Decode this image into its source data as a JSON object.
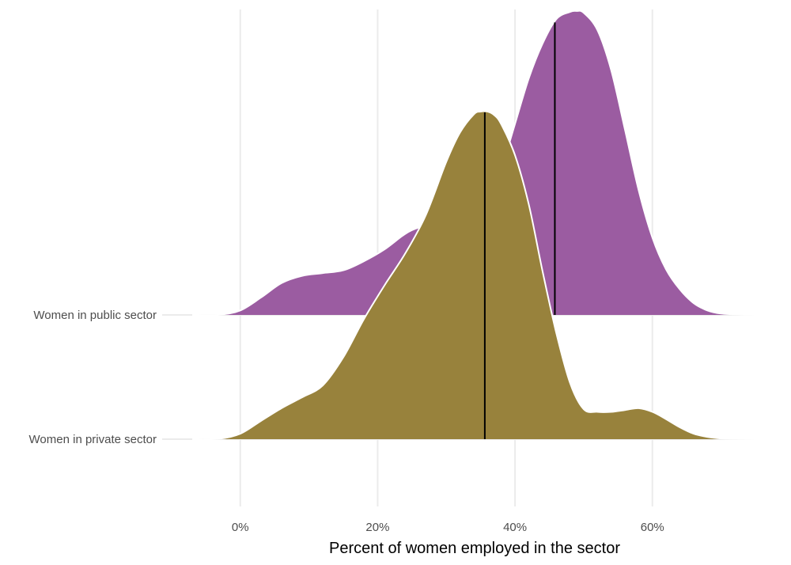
{
  "chart_data": {
    "type": "ridgeline",
    "title": "",
    "xlabel": "Percent of women employed in the sector",
    "ylabel": "",
    "xlim": [
      -7,
      75
    ],
    "x_ticks": [
      0,
      20,
      40,
      60
    ],
    "x_tick_labels": [
      "0%",
      "20%",
      "40%",
      "60%"
    ],
    "grid": true,
    "series": [
      {
        "name": "Women in public sector",
        "color": "#9b5ca1",
        "median": 45.8,
        "density_x": [
          -7,
          -3,
          0,
          3,
          6,
          9,
          12,
          15,
          18,
          21,
          24,
          26,
          27,
          28,
          30,
          32,
          34,
          36,
          38,
          40,
          42,
          44,
          46,
          48,
          49,
          50,
          52,
          54,
          56,
          58,
          60,
          62,
          64,
          66,
          68,
          70,
          73,
          75
        ],
        "density": [
          0,
          0.003,
          0.05,
          0.19,
          0.35,
          0.43,
          0.46,
          0.49,
          0.59,
          0.72,
          0.89,
          0.96,
          0.96,
          0.92,
          0.72,
          0.72,
          0.91,
          1.2,
          1.6,
          2.1,
          2.6,
          2.98,
          3.25,
          3.33,
          3.34,
          3.32,
          3.13,
          2.69,
          2.04,
          1.37,
          0.85,
          0.5,
          0.28,
          0.13,
          0.05,
          0.015,
          0.003,
          0
        ]
      },
      {
        "name": "Women in private sector",
        "color": "#98823c",
        "median": 35.6,
        "density_x": [
          -7,
          -3,
          0,
          3,
          6,
          9,
          12,
          15,
          18,
          21,
          24,
          27,
          30,
          32,
          34,
          35,
          36,
          37,
          38,
          40,
          42,
          44,
          46,
          48,
          50,
          52,
          54,
          56,
          58,
          60,
          62,
          64,
          66,
          68,
          70,
          73,
          75
        ],
        "density": [
          0,
          0.005,
          0.06,
          0.2,
          0.34,
          0.46,
          0.59,
          0.9,
          1.32,
          1.69,
          2.04,
          2.46,
          3.05,
          3.37,
          3.57,
          3.6,
          3.6,
          3.56,
          3.46,
          3.12,
          2.58,
          1.85,
          1.17,
          0.62,
          0.33,
          0.3,
          0.3,
          0.32,
          0.34,
          0.3,
          0.22,
          0.13,
          0.06,
          0.025,
          0.008,
          0.002,
          0
        ]
      }
    ]
  }
}
